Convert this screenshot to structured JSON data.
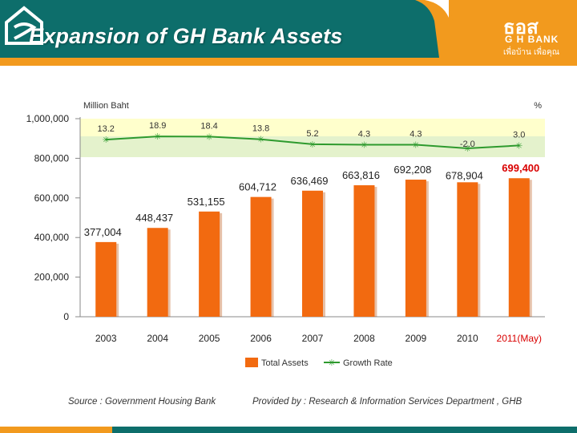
{
  "slide": {
    "title": "Expansion of GH Bank Assets",
    "logo": {
      "thai": "ธอส",
      "english": "G H BANK",
      "tagline": "เพื่อบ้าน เพื่อคุณ"
    },
    "source": "Source : Government Housing Bank",
    "provided_by": "Provided by : Research & Information Services Department , GHB"
  },
  "colors": {
    "header_teal": "#0d6e6b",
    "header_orange": "#f29a1e",
    "bar": "#f26a10",
    "bar_shadow": "#b84d08",
    "line": "#2e9a2e",
    "highlight": "#d90000",
    "band_yellow": "#ffffcc",
    "band_green": "#e4f2cc"
  },
  "chart_data": {
    "type": "bar",
    "ylabel": "Million Baht",
    "y2label": "%",
    "categories": [
      "2003",
      "2004",
      "2005",
      "2006",
      "2007",
      "2008",
      "2009",
      "2010",
      "2011(May)"
    ],
    "ylim": [
      0,
      1000000
    ],
    "yticks": [
      0,
      200000,
      400000,
      600000,
      800000,
      1000000
    ],
    "ytick_labels": [
      "0",
      "200,000",
      "400,000",
      "600,000",
      "800,000",
      "1,000,000"
    ],
    "series": [
      {
        "name": "Total Assets",
        "type": "bar",
        "values": [
          377004,
          448437,
          531155,
          604712,
          636469,
          663816,
          692208,
          678904,
          699400
        ],
        "labels": [
          "377,004",
          "448,437",
          "531,155",
          "604,712",
          "636,469",
          "663,816",
          "692,208",
          "678,904",
          "699,400"
        ]
      },
      {
        "name": "Growth Rate",
        "type": "line",
        "values": [
          13.2,
          18.9,
          18.4,
          13.8,
          5.2,
          4.3,
          4.3,
          -2.0,
          3.0
        ],
        "labels": [
          "13.2",
          "18.9",
          "18.4",
          "13.8",
          "5.2",
          "4.3",
          "4.3",
          "-2.0",
          "3.0"
        ]
      }
    ],
    "legend": "bottom",
    "grid": false
  }
}
